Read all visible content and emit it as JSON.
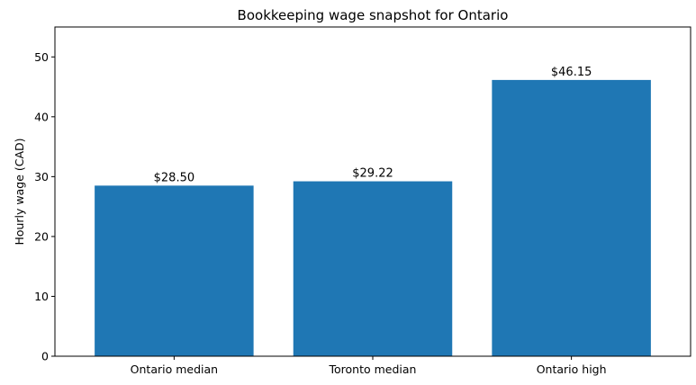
{
  "chart_data": {
    "type": "bar",
    "title": "Bookkeeping wage snapshot for Ontario",
    "xlabel": "",
    "ylabel": "Hourly wage (CAD)",
    "categories": [
      "Ontario median",
      "Toronto median",
      "Ontario high"
    ],
    "values": [
      28.5,
      29.22,
      46.15
    ],
    "data_labels": [
      "$28.50",
      "$29.22",
      "$46.15"
    ],
    "ylim": [
      0,
      55
    ],
    "yticks": [
      0,
      10,
      20,
      30,
      40,
      50
    ],
    "grid": false,
    "legend": "none",
    "bar_color": "#1f77b4"
  }
}
